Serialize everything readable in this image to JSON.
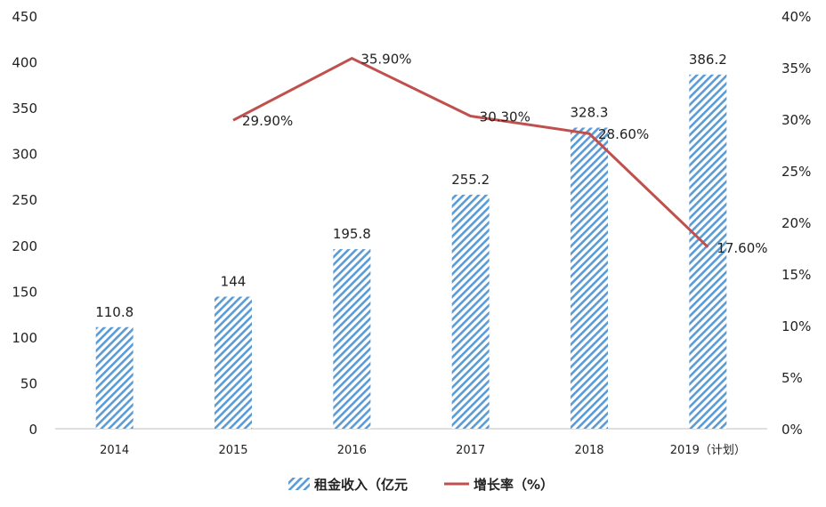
{
  "chart_data": {
    "type": "bar",
    "categories": [
      "2014",
      "2015",
      "2016",
      "2017",
      "2018",
      "2019（计划）"
    ],
    "series": [
      {
        "name": "租金收入（亿元",
        "type": "bar",
        "axis": "left",
        "values": [
          110.8,
          144,
          195.8,
          255.2,
          328.3,
          386.2
        ],
        "labels": [
          "110.8",
          "144",
          "195.8",
          "255.2",
          "328.3",
          "386.2"
        ],
        "color": "#5b9bd5"
      },
      {
        "name": "增长率（%）",
        "type": "line",
        "axis": "right",
        "values": [
          null,
          29.9,
          35.9,
          30.3,
          28.6,
          17.6
        ],
        "labels": [
          "",
          "29.90%",
          "35.90%",
          "30.30%",
          "28.60%",
          "17.60%"
        ],
        "color": "#c0504d"
      }
    ],
    "y_left": {
      "lim": [
        0,
        450
      ],
      "ticks": [
        "0",
        "50",
        "100",
        "150",
        "200",
        "250",
        "300",
        "350",
        "400",
        "450"
      ]
    },
    "y_right": {
      "lim": [
        0,
        40
      ],
      "ticks": [
        "0%",
        "5%",
        "10%",
        "15%",
        "20%",
        "25%",
        "30%",
        "35%",
        "40%"
      ]
    },
    "grid": false,
    "legend_position": "bottom"
  }
}
